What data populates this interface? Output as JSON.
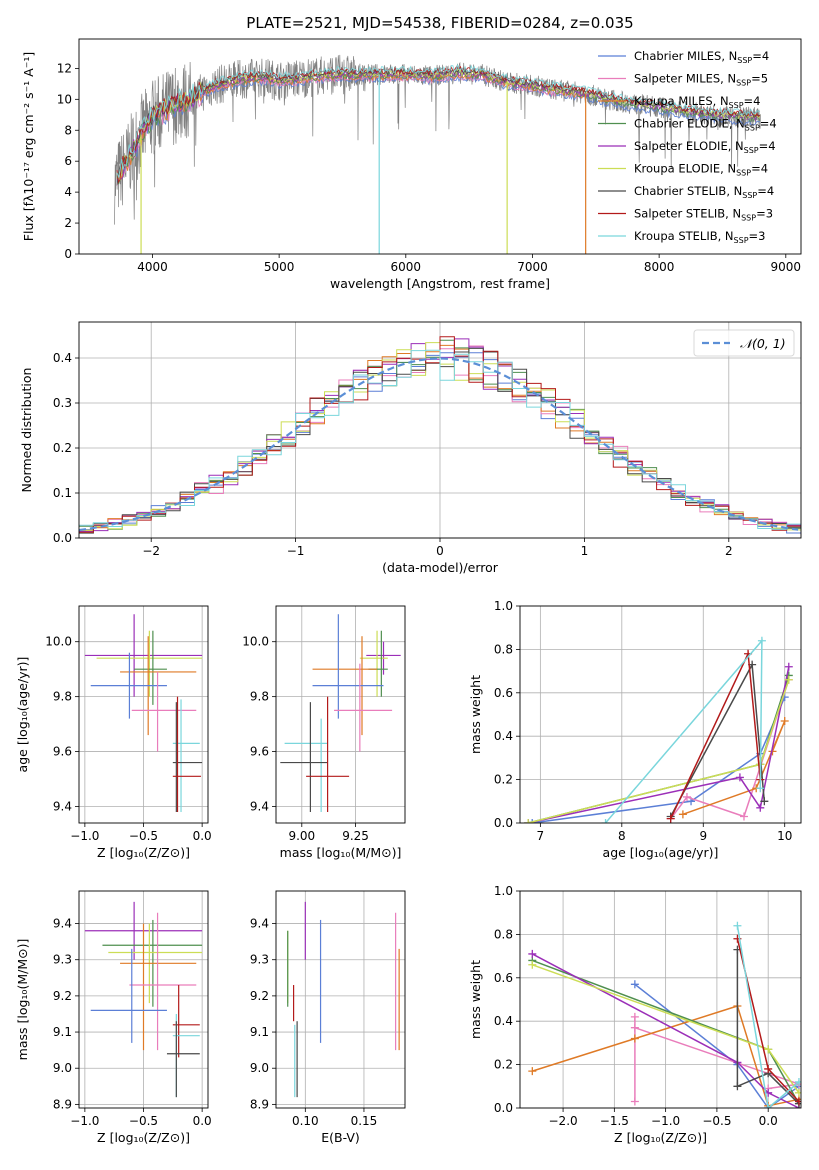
{
  "title": "PLATE=2521, MJD=54538, FIBERID=0284, z=0.035",
  "colors": {
    "Chabrier MILES": "#5b7fd6",
    "Salpeter MILES": "#e97dbb",
    "Kroupa MILES": "#df7a26",
    "Chabrier ELODIE": "#4f8f4f",
    "Salpeter ELODIE": "#9b2fb8",
    "Kroupa ELODIE": "#ccdd55",
    "Chabrier STELIB": "#4a4a4a",
    "Salpeter STELIB": "#b31a1a",
    "Kroupa STELIB": "#7ad6dc",
    "normal": "#5b8fd6",
    "data": "#808080"
  },
  "chart_data": [
    {
      "type": "line",
      "id": "spectrum",
      "title": "PLATE=2521, MJD=54538, FIBERID=0284, z=0.035",
      "xlabel": "wavelength [Angstrom, rest frame]",
      "ylabel": "Flux [fλ10⁻¹⁷ erg cm⁻² s⁻¹ A⁻¹]",
      "xlim": [
        3420,
        9120
      ],
      "ylim": [
        0,
        13.9
      ],
      "xticks": [
        4000,
        5000,
        6000,
        7000,
        8000,
        9000
      ],
      "yticks": [
        0,
        2,
        4,
        6,
        8,
        10,
        12
      ],
      "legend_position": "upper right",
      "legend": [
        {
          "key": "Chabrier MILES",
          "label": "Chabrier MILES, N",
          "sub": "SSP",
          "end": "=4"
        },
        {
          "key": "Salpeter MILES",
          "label": "Salpeter MILES, N",
          "sub": "SSP",
          "end": "=5"
        },
        {
          "key": "Kroupa MILES",
          "label": "Kroupa MILES, N",
          "sub": "SSP",
          "end": "=4"
        },
        {
          "key": "Chabrier ELODIE",
          "label": "Chabrier ELODIE, N",
          "sub": "SSP",
          "end": "=4"
        },
        {
          "key": "Salpeter ELODIE",
          "label": "Salpeter ELODIE, N",
          "sub": "SSP",
          "end": "=4"
        },
        {
          "key": "Kroupa ELODIE",
          "label": "Kroupa ELODIE, N",
          "sub": "SSP",
          "end": "=4"
        },
        {
          "key": "Chabrier STELIB",
          "label": "Chabrier STELIB, N",
          "sub": "SSP",
          "end": "=4"
        },
        {
          "key": "Salpeter STELIB",
          "label": "Salpeter STELIB, N",
          "sub": "SSP",
          "end": "=3"
        },
        {
          "key": "Kroupa STELIB",
          "label": "Kroupa STELIB, N",
          "sub": "SSP",
          "end": "=3"
        }
      ],
      "continuum": [
        [
          3700,
          4.5
        ],
        [
          3800,
          6.0
        ],
        [
          3900,
          7.6
        ],
        [
          3950,
          8.2
        ],
        [
          4000,
          8.8
        ],
        [
          4100,
          9.3
        ],
        [
          4200,
          9.8
        ],
        [
          4300,
          10.0
        ],
        [
          4400,
          10.5
        ],
        [
          4500,
          10.9
        ],
        [
          4600,
          11.1
        ],
        [
          4700,
          11.3
        ],
        [
          4800,
          11.4
        ],
        [
          4900,
          11.4
        ],
        [
          5000,
          11.2
        ],
        [
          5200,
          11.4
        ],
        [
          5400,
          11.6
        ],
        [
          5600,
          11.6
        ],
        [
          5800,
          11.6
        ],
        [
          6000,
          11.6
        ],
        [
          6200,
          11.5
        ],
        [
          6400,
          11.7
        ],
        [
          6600,
          11.6
        ],
        [
          6800,
          11.1
        ],
        [
          7000,
          10.9
        ],
        [
          7200,
          10.6
        ],
        [
          7400,
          10.4
        ],
        [
          7600,
          10.0
        ],
        [
          7800,
          9.7
        ],
        [
          8000,
          9.5
        ],
        [
          8200,
          9.2
        ],
        [
          8400,
          9.0
        ],
        [
          8600,
          8.9
        ],
        [
          8800,
          8.8
        ]
      ],
      "model_spikes": [
        {
          "key": "Kroupa STELIB",
          "x": 5790,
          "y": 0
        },
        {
          "key": "Kroupa ELODIE",
          "x": 6800,
          "y": 0
        },
        {
          "key": "Kroupa ELODIE",
          "x": 3910,
          "y": 0
        },
        {
          "key": "Kroupa MILES",
          "x": 7420,
          "y": 0
        }
      ]
    },
    {
      "type": "step",
      "id": "residuals",
      "xlabel": "(data-model)/error",
      "ylabel": "Normed distribution",
      "xlim": [
        -2.5,
        2.5
      ],
      "ylim": [
        0,
        0.48
      ],
      "xticks": [
        -2,
        -1,
        0,
        1,
        2
      ],
      "yticks": [
        0.0,
        0.1,
        0.2,
        0.3,
        0.4
      ],
      "legend_position": "upper right",
      "normal_label": "𝒩(0, 1)",
      "bin_width": 0.1
    },
    {
      "type": "scatter",
      "id": "age_vs_Z",
      "xlabel": "Z [log₁₀(Z/Z⊙)]",
      "ylabel": "age  [log₁₀(age/yr)]",
      "xlim": [
        -1.05,
        0.05
      ],
      "ylim": [
        9.34,
        10.13
      ],
      "xticks": [
        -1.0,
        -0.5,
        0.0
      ],
      "yticks": [
        9.4,
        9.6,
        9.8,
        10.0
      ],
      "points": [
        {
          "key": "Salpeter ELODIE",
          "x": -0.58,
          "y": 9.95,
          "xl": -1.0,
          "xh": 0.0,
          "yl": 9.8,
          "yh": 10.1
        },
        {
          "key": "Kroupa ELODIE",
          "x": -0.45,
          "y": 9.94,
          "xl": -0.9,
          "xh": 0.0,
          "yl": 9.8,
          "yh": 10.04
        },
        {
          "key": "Chabrier ELODIE",
          "x": -0.42,
          "y": 9.9,
          "xl": -0.58,
          "xh": -0.3,
          "yl": 9.77,
          "yh": 10.04
        },
        {
          "key": "Kroupa MILES",
          "x": -0.46,
          "y": 9.89,
          "xl": -0.7,
          "xh": -0.05,
          "yl": 9.66,
          "yh": 10.02
        },
        {
          "key": "Chabrier MILES",
          "x": -0.62,
          "y": 9.84,
          "xl": -0.95,
          "xh": -0.3,
          "yl": 9.72,
          "yh": 9.96
        },
        {
          "key": "Salpeter MILES",
          "x": -0.38,
          "y": 9.75,
          "xl": -0.6,
          "xh": -0.05,
          "yl": 9.6,
          "yh": 9.89
        },
        {
          "key": "Kroupa STELIB",
          "x": -0.18,
          "y": 9.63,
          "xl": -0.25,
          "xh": -0.02,
          "yl": 9.38,
          "yh": 9.79
        },
        {
          "key": "Chabrier STELIB",
          "x": -0.22,
          "y": 9.56,
          "xl": -0.25,
          "xh": -0.0,
          "yl": 9.38,
          "yh": 9.78
        },
        {
          "key": "Salpeter STELIB",
          "x": -0.21,
          "y": 9.51,
          "xl": -0.25,
          "xh": -0.01,
          "yl": 9.38,
          "yh": 9.8
        }
      ]
    },
    {
      "type": "scatter",
      "id": "age_vs_mass",
      "xlabel": "mass [log₁₀(M/M⊙)]",
      "ylabel": "",
      "xlim": [
        8.88,
        9.48
      ],
      "ylim": [
        9.34,
        10.13
      ],
      "xticks": [
        9.0,
        9.25
      ],
      "yticks": [
        9.4,
        9.6,
        9.8,
        10.0
      ],
      "points": [
        {
          "key": "Salpeter ELODIE",
          "x": 9.38,
          "y": 9.95,
          "xl": 9.3,
          "xh": 9.46,
          "yl": 9.88,
          "yh": 10.0
        },
        {
          "key": "Kroupa ELODIE",
          "x": 9.35,
          "y": 9.94,
          "xl": 9.27,
          "xh": 9.4,
          "yl": 9.8,
          "yh": 10.04
        },
        {
          "key": "Chabrier ELODIE",
          "x": 9.37,
          "y": 9.9,
          "xl": 9.31,
          "xh": 9.4,
          "yl": 9.8,
          "yh": 10.04
        },
        {
          "key": "Kroupa MILES",
          "x": 9.28,
          "y": 9.9,
          "xl": 9.05,
          "xh": 9.35,
          "yl": 9.66,
          "yh": 10.02
        },
        {
          "key": "Chabrier MILES",
          "x": 9.17,
          "y": 9.84,
          "xl": 9.05,
          "xh": 9.38,
          "yl": 9.72,
          "yh": 10.1
        },
        {
          "key": "Salpeter MILES",
          "x": 9.27,
          "y": 9.75,
          "xl": 9.15,
          "xh": 9.42,
          "yl": 9.6,
          "yh": 9.92
        },
        {
          "key": "Kroupa STELIB",
          "x": 9.09,
          "y": 9.63,
          "xl": 8.92,
          "xh": 9.12,
          "yl": 9.38,
          "yh": 9.72
        },
        {
          "key": "Chabrier STELIB",
          "x": 9.04,
          "y": 9.56,
          "xl": 8.9,
          "xh": 9.12,
          "yl": 9.38,
          "yh": 9.78
        },
        {
          "key": "Salpeter STELIB",
          "x": 9.12,
          "y": 9.51,
          "xl": 9.02,
          "xh": 9.22,
          "yl": 9.38,
          "yh": 9.8
        }
      ]
    },
    {
      "type": "line",
      "id": "mass_weight_vs_age",
      "xlabel": "age  [log₁₀(age/yr)]",
      "ylabel": "mass weight",
      "xlim": [
        6.75,
        10.2
      ],
      "ylim": [
        0,
        1
      ],
      "xticks": [
        7,
        8,
        9,
        10
      ],
      "yticks": [
        0.0,
        0.2,
        0.4,
        0.6,
        0.8,
        1.0
      ],
      "series": [
        {
          "key": "Chabrier MILES",
          "points": [
            [
              6.9,
              0.0
            ],
            [
              8.85,
              0.1
            ],
            [
              9.7,
              0.32
            ],
            [
              10.0,
              0.58
            ]
          ]
        },
        {
          "key": "Salpeter MILES",
          "points": [
            [
              8.6,
              0.02
            ],
            [
              8.8,
              0.12
            ],
            [
              9.5,
              0.03
            ],
            [
              10.05,
              0.66
            ]
          ]
        },
        {
          "key": "Kroupa MILES",
          "points": [
            [
              8.75,
              0.04
            ],
            [
              9.65,
              0.16
            ],
            [
              10.0,
              0.47
            ],
            [
              9.85,
              0.33
            ]
          ]
        },
        {
          "key": "Chabrier ELODIE",
          "points": [
            [
              6.85,
              0.0
            ],
            [
              9.7,
              0.27
            ],
            [
              10.05,
              0.68
            ]
          ]
        },
        {
          "key": "Salpeter ELODIE",
          "points": [
            [
              6.85,
              0.0
            ],
            [
              9.45,
              0.21
            ],
            [
              9.7,
              0.07
            ],
            [
              10.05,
              0.72
            ]
          ]
        },
        {
          "key": "Kroupa ELODIE",
          "points": [
            [
              6.85,
              0.0
            ],
            [
              9.7,
              0.27
            ],
            [
              10.05,
              0.66
            ]
          ]
        },
        {
          "key": "Chabrier STELIB",
          "points": [
            [
              8.6,
              0.03
            ],
            [
              9.6,
              0.73
            ],
            [
              9.75,
              0.1
            ]
          ]
        },
        {
          "key": "Salpeter STELIB",
          "points": [
            [
              8.6,
              0.02
            ],
            [
              9.55,
              0.78
            ],
            [
              9.7,
              0.2
            ]
          ]
        },
        {
          "key": "Kroupa STELIB",
          "points": [
            [
              7.8,
              0.0
            ],
            [
              9.72,
              0.84
            ],
            [
              9.7,
              0.16
            ]
          ]
        }
      ]
    },
    {
      "type": "scatter",
      "id": "mass_vs_Z",
      "xlabel": "Z [log₁₀(Z/Z⊙)]",
      "ylabel": "mass [log₁₀(M/M⊙)]",
      "xlim": [
        -1.05,
        0.05
      ],
      "ylim": [
        8.89,
        9.49
      ],
      "xticks": [
        -1.0,
        -0.5,
        0.0
      ],
      "yticks": [
        8.9,
        9.0,
        9.1,
        9.2,
        9.3,
        9.4
      ],
      "points": [
        {
          "key": "Salpeter ELODIE",
          "x": -0.58,
          "y": 9.38,
          "xl": -1.0,
          "xh": 0.0,
          "yl": 9.3,
          "yh": 9.46
        },
        {
          "key": "Chabrier ELODIE",
          "x": -0.42,
          "y": 9.34,
          "xl": -0.85,
          "xh": 0.0,
          "yl": 9.17,
          "yh": 9.41
        },
        {
          "key": "Kroupa ELODIE",
          "x": -0.45,
          "y": 9.32,
          "xl": -0.8,
          "xh": 0.0,
          "yl": 9.18,
          "yh": 9.4
        },
        {
          "key": "Kroupa MILES",
          "x": -0.5,
          "y": 9.29,
          "xl": -0.7,
          "xh": -0.05,
          "yl": 9.05,
          "yh": 9.4
        },
        {
          "key": "Salpeter MILES",
          "x": -0.38,
          "y": 9.23,
          "xl": -0.62,
          "xh": -0.05,
          "yl": 9.05,
          "yh": 9.43
        },
        {
          "key": "Chabrier MILES",
          "x": -0.6,
          "y": 9.16,
          "xl": -0.95,
          "xh": -0.3,
          "yl": 9.07,
          "yh": 9.33
        },
        {
          "key": "Salpeter STELIB",
          "x": -0.2,
          "y": 9.12,
          "xl": -0.25,
          "xh": -0.02,
          "yl": 9.03,
          "yh": 9.23
        },
        {
          "key": "Kroupa STELIB",
          "x": -0.22,
          "y": 9.09,
          "xl": -0.25,
          "xh": -0.02,
          "yl": 8.92,
          "yh": 9.15
        },
        {
          "key": "Chabrier STELIB",
          "x": -0.22,
          "y": 9.04,
          "xl": -0.3,
          "xh": -0.02,
          "yl": 8.92,
          "yh": 9.13
        }
      ]
    },
    {
      "type": "scatter",
      "id": "mass_vs_ebv",
      "xlabel": "E(B-V)",
      "ylabel": "",
      "xlim": [
        0.075,
        0.185
      ],
      "ylim": [
        8.89,
        9.49
      ],
      "xticks": [
        0.1,
        0.15
      ],
      "yticks": [
        8.9,
        9.0,
        9.1,
        9.2,
        9.3,
        9.4
      ],
      "points": [
        {
          "key": "Salpeter ELODIE",
          "x": 0.1,
          "yl": 9.3,
          "yh": 9.46
        },
        {
          "key": "Kroupa ELODIE",
          "x": 0.085,
          "yl": 9.18,
          "yh": 9.38
        },
        {
          "key": "Chabrier ELODIE",
          "x": 0.085,
          "yl": 9.17,
          "yh": 9.38
        },
        {
          "key": "Salpeter MILES",
          "x": 0.177,
          "yl": 9.05,
          "yh": 9.43
        },
        {
          "key": "Kroupa MILES",
          "x": 0.18,
          "yl": 9.05,
          "yh": 9.33
        },
        {
          "key": "Chabrier MILES",
          "x": 0.113,
          "yl": 9.07,
          "yh": 9.41
        },
        {
          "key": "Salpeter STELIB",
          "x": 0.09,
          "yl": 9.13,
          "yh": 9.23
        },
        {
          "key": "Kroupa STELIB",
          "x": 0.091,
          "yl": 8.92,
          "yh": 9.12
        },
        {
          "key": "Chabrier STELIB",
          "x": 0.093,
          "yl": 8.92,
          "yh": 9.13
        }
      ]
    },
    {
      "type": "line",
      "id": "mass_weight_vs_Z",
      "xlabel": "Z [log₁₀(Z/Z⊙)]",
      "ylabel": "mass weight",
      "xlim": [
        -2.42,
        0.32
      ],
      "ylim": [
        0,
        1
      ],
      "xticks": [
        -2.0,
        -1.5,
        -1.0,
        -0.5,
        0.0
      ],
      "yticks": [
        0.0,
        0.2,
        0.4,
        0.6,
        0.8,
        1.0
      ],
      "series": [
        {
          "key": "Chabrier MILES",
          "points": [
            [
              -1.3,
              0.57
            ],
            [
              -0.3,
              0.2
            ],
            [
              0.0,
              0.0
            ],
            [
              0.3,
              0.1
            ]
          ]
        },
        {
          "key": "Salpeter MILES",
          "points": [
            [
              -1.3,
              0.03
            ],
            [
              -1.3,
              0.42
            ],
            [
              -1.3,
              0.37
            ],
            [
              0.3,
              0.11
            ],
            [
              0.0,
              0.09
            ]
          ]
        },
        {
          "key": "Kroupa MILES",
          "points": [
            [
              -2.3,
              0.17
            ],
            [
              -1.3,
              0.32
            ],
            [
              -0.3,
              0.47
            ],
            [
              0.0,
              0.01
            ],
            [
              0.3,
              0.04
            ]
          ]
        },
        {
          "key": "Chabrier ELODIE",
          "points": [
            [
              -2.3,
              0.68
            ],
            [
              0.0,
              0.27
            ],
            [
              0.3,
              0.02
            ]
          ]
        },
        {
          "key": "Salpeter ELODIE",
          "points": [
            [
              -2.3,
              0.71
            ],
            [
              -0.3,
              0.21
            ],
            [
              0.0,
              0.07
            ],
            [
              0.3,
              0.0
            ]
          ]
        },
        {
          "key": "Kroupa ELODIE",
          "points": [
            [
              -2.3,
              0.66
            ],
            [
              0.0,
              0.27
            ],
            [
              0.3,
              0.07
            ]
          ]
        },
        {
          "key": "Chabrier STELIB",
          "points": [
            [
              -0.3,
              0.73
            ],
            [
              -0.3,
              0.1
            ],
            [
              0.0,
              0.16
            ],
            [
              0.3,
              0.02
            ]
          ]
        },
        {
          "key": "Salpeter STELIB",
          "points": [
            [
              -0.3,
              0.78
            ],
            [
              0.0,
              0.18
            ],
            [
              0.3,
              0.03
            ]
          ]
        },
        {
          "key": "Kroupa STELIB",
          "points": [
            [
              -0.3,
              0.84
            ],
            [
              0.0,
              0.0
            ],
            [
              0.3,
              0.12
            ]
          ]
        }
      ]
    }
  ]
}
